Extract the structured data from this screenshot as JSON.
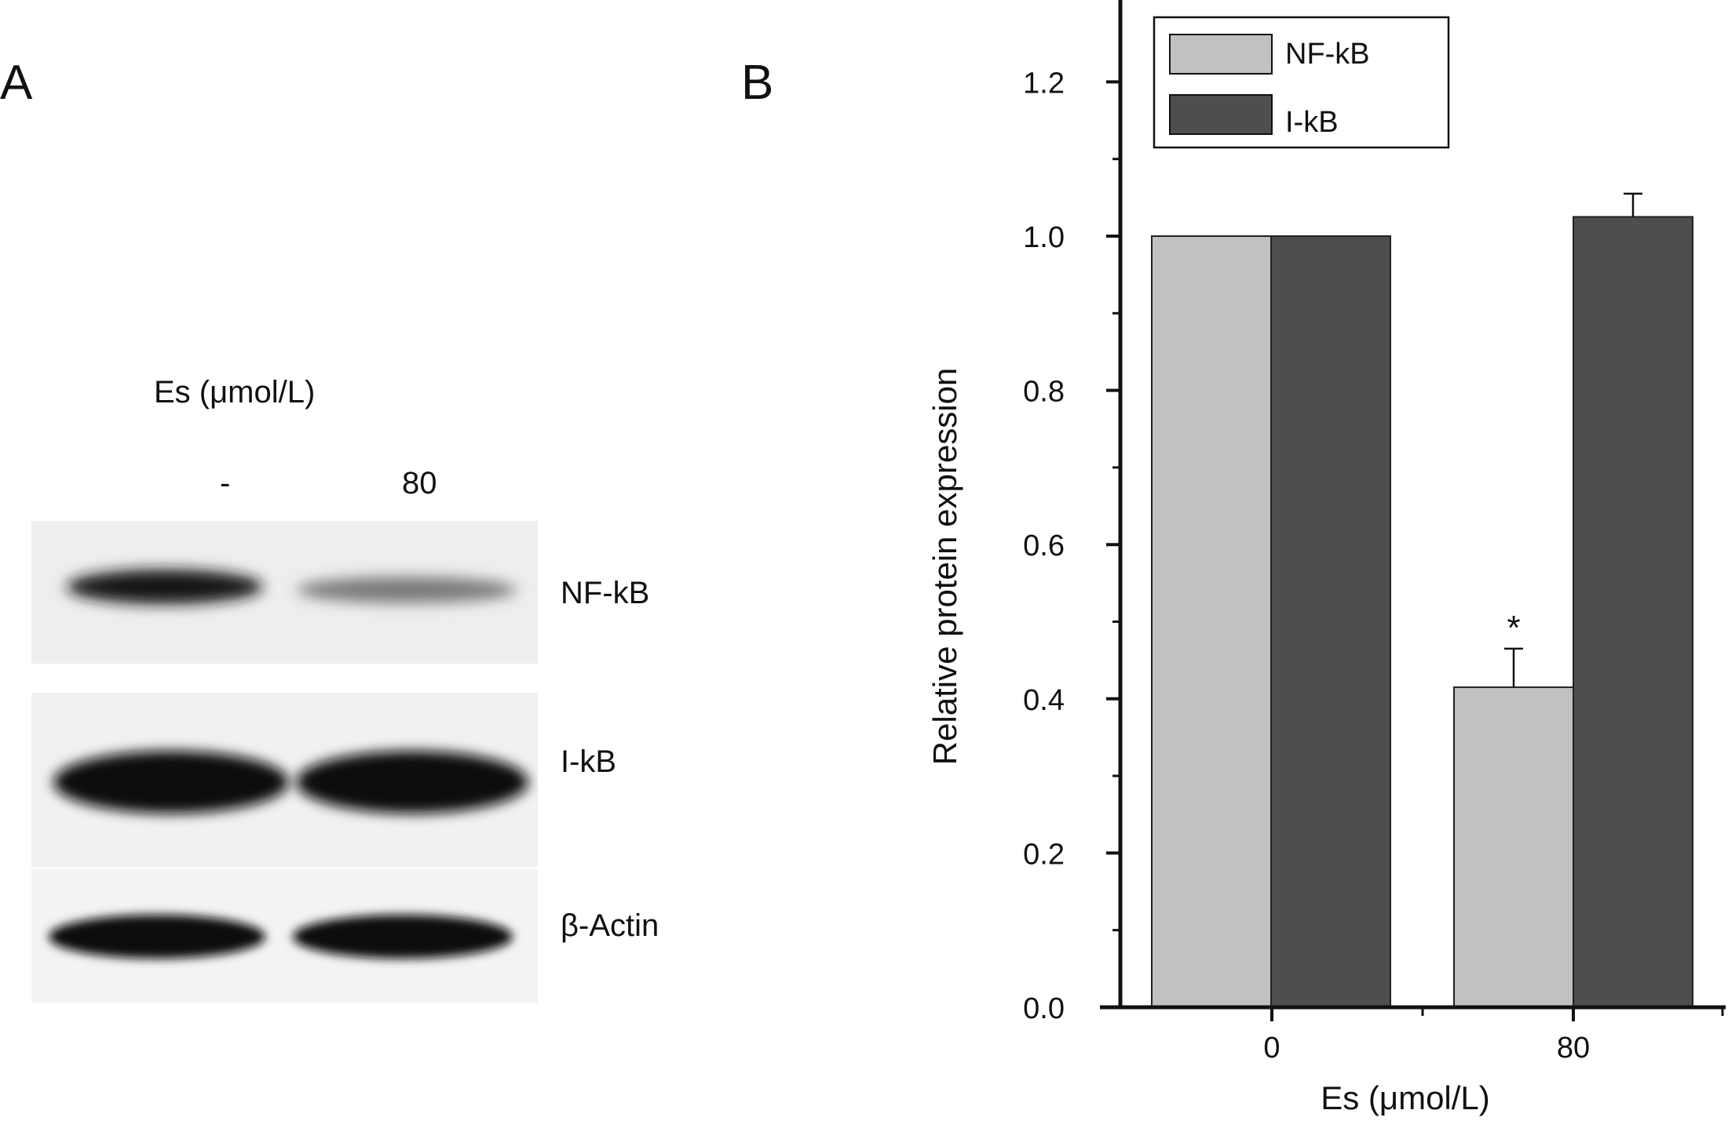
{
  "panel_a": {
    "letter": "A",
    "treatment_label": "Es (μmol/L)",
    "lanes": [
      "-",
      "80"
    ],
    "bands": [
      {
        "label": "NF-kB",
        "intensity": [
          1.0,
          0.42
        ]
      },
      {
        "label": "I-kB",
        "intensity": [
          1.0,
          1.02
        ]
      },
      {
        "label": "β-Actin",
        "intensity": [
          1.0,
          1.0
        ]
      }
    ]
  },
  "panel_b": {
    "letter": "B"
  },
  "chart_data": {
    "type": "bar",
    "categories": [
      "0",
      "80"
    ],
    "series": [
      {
        "name": "NF-kB",
        "color": "#c0c1c3",
        "values": [
          1.0,
          0.415
        ],
        "errors": [
          0,
          0.05
        ]
      },
      {
        "name": "I-kB",
        "color": "#4d4e50",
        "values": [
          1.0,
          1.025
        ],
        "errors": [
          0,
          0.03
        ]
      }
    ],
    "annotations": [
      {
        "category": "80",
        "series": "NF-kB",
        "text": "*"
      }
    ],
    "xlabel": "Es (μmol/L)",
    "ylabel": "Relative protein expression",
    "ylim": [
      0,
      1.3
    ],
    "yticks": [
      "0.0",
      "0.2",
      "0.4",
      "0.6",
      "0.8",
      "1.0",
      "1.2"
    ],
    "legend_position": "top-left",
    "grid": false
  }
}
